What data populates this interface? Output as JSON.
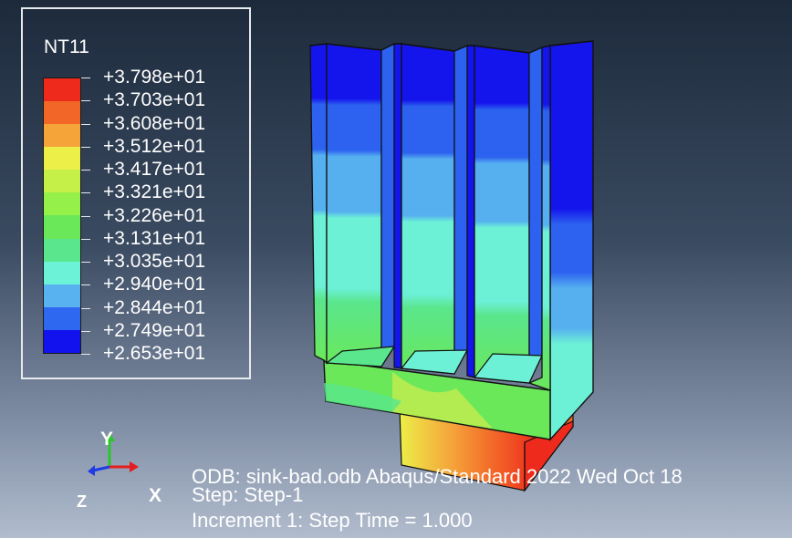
{
  "legend": {
    "variable": "NT11",
    "labels": [
      "+3.798e+01",
      "+3.703e+01",
      "+3.608e+01",
      "+3.512e+01",
      "+3.417e+01",
      "+3.321e+01",
      "+3.226e+01",
      "+3.131e+01",
      "+3.035e+01",
      "+2.940e+01",
      "+2.844e+01",
      "+2.749e+01",
      "+2.653e+01"
    ],
    "colors": [
      "#ee2a1c",
      "#f26628",
      "#f5a43a",
      "#ecef48",
      "#c4f048",
      "#96f04a",
      "#6be85a",
      "#5ae68c",
      "#6cf2d6",
      "#58b2f0",
      "#2e68f0",
      "#1212ee"
    ]
  },
  "triad": {
    "y_label": "Y",
    "x_label": "X",
    "z_label": "Z",
    "colors": {
      "x": "#e41e1e",
      "y": "#28c828",
      "z": "#1f3be6"
    }
  },
  "info": {
    "odb_line": "ODB: sink-bad.odb    Abaqus/Standard 2022    Wed Oct 18",
    "step_line": "Step: Step-1",
    "increment_line": "Increment     1: Step Time =    1.000"
  }
}
